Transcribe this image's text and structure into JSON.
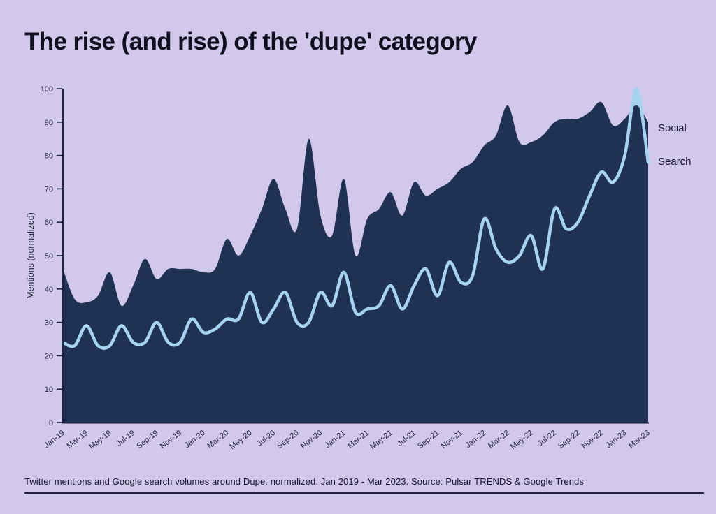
{
  "title": "The rise (and rise) of the 'dupe' category",
  "caption": "Twitter mentions and Google search volumes around Dupe. normalized. Jan 2019 - Mar 2023. Source: Pulsar TRENDS & Google Trends",
  "legend": {
    "social": "Social",
    "search": "Search"
  },
  "colors": {
    "background": "#d2c8ec",
    "social_fill": "#203254",
    "search_color": "#a6d4f0",
    "axis_line": "#1c2440",
    "axis_text": "#1f2038",
    "title_text": "#0f0f1e"
  },
  "chart_data": {
    "type": "area",
    "title": "The rise (and rise) of the 'dupe' category",
    "ylabel": "Mentions (normalized)",
    "xlabel": "",
    "ylim": [
      0,
      100
    ],
    "yticks": [
      0,
      10,
      20,
      30,
      40,
      50,
      60,
      70,
      80,
      90,
      100
    ],
    "grid": false,
    "legend_position": "right",
    "xtick_every": 2,
    "x": [
      "Jan-19",
      "Feb-19",
      "Mar-19",
      "Apr-19",
      "May-19",
      "Jun-19",
      "Jul-19",
      "Aug-19",
      "Sep-19",
      "Oct-19",
      "Nov-19",
      "Dec-19",
      "Jan-20",
      "Feb-20",
      "Mar-20",
      "Apr-20",
      "May-20",
      "Jun-20",
      "Jul-20",
      "Aug-20",
      "Sep-20",
      "Oct-20",
      "Nov-20",
      "Dec-20",
      "Jan-21",
      "Feb-21",
      "Mar-21",
      "Apr-21",
      "May-21",
      "Jun-21",
      "Jul-21",
      "Aug-21",
      "Sep-21",
      "Oct-21",
      "Nov-21",
      "Dec-21",
      "Jan-22",
      "Feb-22",
      "Mar-22",
      "Apr-22",
      "May-22",
      "Jun-22",
      "Jul-22",
      "Aug-22",
      "Sep-22",
      "Oct-22",
      "Nov-22",
      "Dec-22",
      "Jan-23",
      "Feb-23",
      "Mar-23"
    ],
    "series": [
      {
        "name": "Social",
        "style": "filled-area",
        "color": "#203254",
        "values": [
          46,
          37,
          36,
          38,
          45,
          35,
          41,
          49,
          43,
          46,
          46,
          46,
          45,
          46,
          55,
          50,
          56,
          64,
          73,
          64,
          58,
          85,
          62,
          56,
          73,
          50,
          61,
          64,
          69,
          62,
          72,
          68,
          70,
          72,
          76,
          78,
          83,
          86,
          95,
          84,
          84,
          86,
          90,
          91,
          91,
          93,
          96,
          89,
          91,
          95,
          90
        ]
      },
      {
        "name": "Search",
        "style": "line-with-area",
        "color": "#a6d4f0",
        "values": [
          24,
          23,
          29,
          23,
          23,
          29,
          24,
          24,
          30,
          24,
          24,
          31,
          27,
          28,
          31,
          31,
          39,
          30,
          34,
          39,
          30,
          30,
          39,
          35,
          45,
          33,
          34,
          35,
          41,
          34,
          41,
          46,
          38,
          48,
          42,
          44,
          61,
          52,
          48,
          50,
          56,
          46,
          64,
          58,
          60,
          68,
          75,
          72,
          80,
          100,
          78
        ]
      }
    ]
  }
}
